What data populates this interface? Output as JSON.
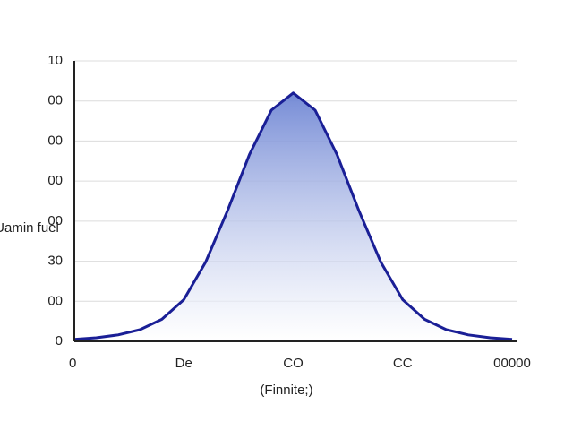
{
  "chart_data": {
    "type": "area",
    "xlabel": "(Finnite;)",
    "ylabel": "Uamin fuel",
    "x": [
      0,
      0.2,
      0.4,
      0.6,
      0.8,
      1.0,
      1.2,
      1.4,
      1.6,
      1.8,
      2.0,
      2.2,
      2.4,
      2.6,
      2.8,
      3.0,
      3.2,
      3.4,
      3.6,
      3.8,
      4.0
    ],
    "values": [
      0.5,
      0.9,
      1.6,
      2.9,
      5.5,
      10.4,
      19.8,
      32.6,
      46.6,
      57.7,
      62,
      57.7,
      46.6,
      32.6,
      19.8,
      10.4,
      5.5,
      2.9,
      1.6,
      0.9,
      0.5
    ],
    "color": "#1a1f96",
    "xlim": [
      0,
      4
    ],
    "xticks": [
      0,
      {
        "value": 1,
        "label": "De"
      },
      {
        "value": 2,
        "label": "CO"
      },
      {
        "value": 3,
        "label": "CC"
      },
      {
        "value": 4,
        "label": "00000"
      }
    ],
    "ylim": [
      0,
      70
    ],
    "yticks": [
      0,
      {
        "value": 10,
        "label": "00"
      },
      {
        "value": 20,
        "label": "30"
      },
      {
        "value": 30,
        "label": "00"
      },
      {
        "value": 40,
        "label": "00"
      },
      {
        "value": 50,
        "label": "00"
      },
      {
        "value": 60,
        "label": "00"
      },
      {
        "value": 70,
        "label": "10"
      }
    ],
    "grid": true
  }
}
